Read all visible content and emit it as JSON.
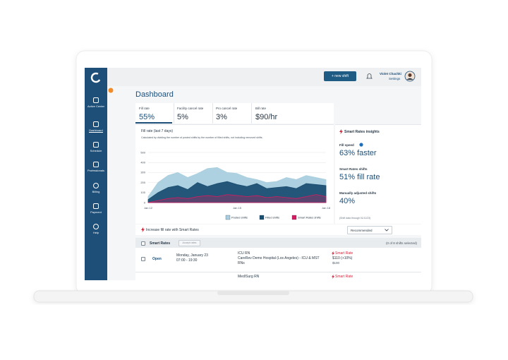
{
  "sidebar": {
    "items": [
      "Active Center",
      "Dashboard",
      "Schedule",
      "Professionals",
      "Billing",
      "Payment",
      "Help"
    ]
  },
  "header": {
    "new_shift_button": "+ new shift",
    "user_name": "Violet Chachki",
    "settings_link": "Settings"
  },
  "dashboard": {
    "title": "Dashboard",
    "stats": [
      {
        "label": "Fill rate",
        "value": "55%"
      },
      {
        "label": "Facility cancel rate",
        "value": "5%"
      },
      {
        "label": "Pro cancel rate",
        "value": "3%"
      },
      {
        "label": "Bill rate",
        "value": "$90/hr"
      }
    ]
  },
  "chart_data": {
    "type": "area",
    "title": "Fill rate (last 7 days)",
    "subtitle": "Calculated by dividing the number of posted shifts by the number of filled shifts, not including removed shifts.",
    "categories": [
      "Jan 12",
      null,
      null,
      null,
      null,
      null,
      null,
      null,
      null,
      "Jan 15",
      null,
      null,
      null,
      null,
      null,
      null,
      null,
      null,
      "Jan 18"
    ],
    "series": [
      {
        "name": "Posted shifts",
        "color": "#a9cfde",
        "values": [
          60,
          200,
          270,
          300,
          250,
          290,
          340,
          350,
          300,
          290,
          250,
          230,
          200,
          210,
          250,
          230,
          270,
          250,
          230
        ]
      },
      {
        "name": "Filled shifts",
        "color": "#1b4f72",
        "values": [
          30,
          100,
          150,
          170,
          130,
          200,
          160,
          190,
          210,
          180,
          160,
          190,
          140,
          150,
          160,
          140,
          190,
          180,
          170
        ]
      },
      {
        "name": "Smart Rates shifts",
        "color": "#d81b60",
        "values": [
          0,
          20,
          40,
          50,
          40,
          60,
          70,
          60,
          80,
          70,
          60,
          70,
          50,
          60,
          50,
          40,
          60,
          80,
          60
        ]
      }
    ],
    "ylim": [
      0,
      500
    ],
    "yticks": [
      0,
      100,
      200,
      300,
      400,
      500
    ],
    "grid": true,
    "legend": "bottom"
  },
  "insights": {
    "title": "Smart Rates insights",
    "metrics": [
      {
        "label": "Fill speed",
        "value": "63% faster"
      },
      {
        "label": "Smart Rates shifts",
        "value": "51% fill rate"
      },
      {
        "label": "Manually adjusted shifts",
        "value": "40%"
      }
    ],
    "footnote": "(Shift data through 01/11/23)"
  },
  "smart_rates_banner": {
    "text": "Increase fill rate with Smart Rates",
    "sort_option": "Recommended"
  },
  "table": {
    "section_title": "Smart Rates",
    "accept_button": "Accept rates",
    "selection_status": "(0 of 8 shifts selected)",
    "rows": [
      {
        "status": "Open",
        "date": "Monday, January 23",
        "time": "07:00 - 19:30",
        "role": "ICU RN",
        "facility": "CareRev Demo Hospital (Los Angeles) - ICU & MST RNs",
        "rate_label": "Smart Rate",
        "smart_rate": "$110 (+10%)",
        "base_rate": "$100"
      },
      {
        "role": "Med/Surg RN",
        "rate_label": "Smart Rate"
      }
    ]
  }
}
